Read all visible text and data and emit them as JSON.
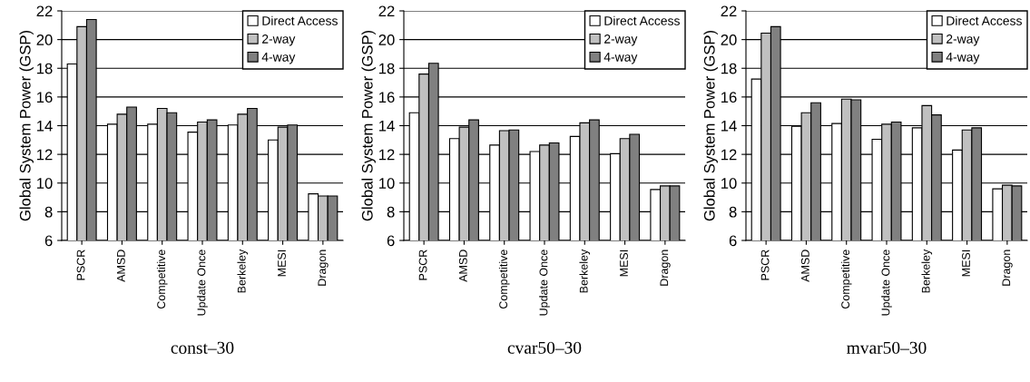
{
  "chart_data": [
    {
      "type": "bar",
      "xlabel": "const–30",
      "ylabel": "Global System Power (GSP)",
      "categories": [
        "PSCR",
        "AMSD",
        "Competitive",
        "Update Once",
        "Berkeley",
        "MESI",
        "Dragon"
      ],
      "ylim": [
        6,
        22
      ],
      "yticks": [
        6,
        8,
        10,
        12,
        14,
        16,
        18,
        20,
        22
      ],
      "grid": "y",
      "legend": "top right",
      "series": [
        {
          "name": "Direct Access",
          "color": "#ffffff",
          "values": [
            18.3,
            14.1,
            14.1,
            13.55,
            14.05,
            13.0,
            9.25
          ]
        },
        {
          "name": "2-way",
          "color": "#c0c0c0",
          "values": [
            20.9,
            14.8,
            15.2,
            14.25,
            14.8,
            13.9,
            9.1
          ]
        },
        {
          "name": "4-way",
          "color": "#808080",
          "values": [
            21.4,
            15.3,
            14.9,
            14.4,
            15.2,
            14.05,
            9.1
          ]
        }
      ]
    },
    {
      "type": "bar",
      "xlabel": "cvar50–30",
      "ylabel": "Global System Power (GSP)",
      "categories": [
        "PSCR",
        "AMSD",
        "Competitive",
        "Update Once",
        "Berkeley",
        "MESI",
        "Dragon"
      ],
      "ylim": [
        6,
        22
      ],
      "yticks": [
        6,
        8,
        10,
        12,
        14,
        16,
        18,
        20,
        22
      ],
      "grid": "y",
      "legend": "top right",
      "series": [
        {
          "name": "Direct Access",
          "color": "#ffffff",
          "values": [
            14.9,
            13.1,
            12.65,
            12.2,
            13.25,
            12.05,
            9.55
          ]
        },
        {
          "name": "2-way",
          "color": "#c0c0c0",
          "values": [
            17.6,
            13.9,
            13.65,
            12.65,
            14.2,
            13.1,
            9.8
          ]
        },
        {
          "name": "4-way",
          "color": "#808080",
          "values": [
            18.35,
            14.4,
            13.7,
            12.8,
            14.4,
            13.4,
            9.8
          ]
        }
      ]
    },
    {
      "type": "bar",
      "xlabel": "mvar50–30",
      "ylabel": "Global System Power (GSP)",
      "categories": [
        "PSCR",
        "AMSD",
        "Competitive",
        "Update Once",
        "Berkeley",
        "MESI",
        "Dragon"
      ],
      "ylim": [
        6,
        22
      ],
      "yticks": [
        6,
        8,
        10,
        12,
        14,
        16,
        18,
        20,
        22
      ],
      "grid": "y",
      "legend": "top right",
      "series": [
        {
          "name": "Direct Access",
          "color": "#ffffff",
          "values": [
            17.25,
            13.95,
            14.15,
            13.05,
            13.85,
            12.3,
            9.6
          ]
        },
        {
          "name": "2-way",
          "color": "#c0c0c0",
          "values": [
            20.45,
            14.9,
            15.85,
            14.1,
            15.4,
            13.7,
            9.85
          ]
        },
        {
          "name": "4-way",
          "color": "#808080",
          "values": [
            20.9,
            15.6,
            15.8,
            14.25,
            14.75,
            13.85,
            9.8
          ]
        }
      ]
    }
  ]
}
